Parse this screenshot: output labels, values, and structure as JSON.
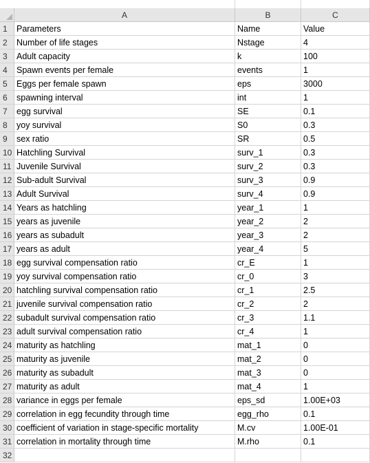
{
  "columns": [
    "A",
    "B",
    "C"
  ],
  "rows": [
    {
      "n": "1",
      "a": "Parameters",
      "b": "Name",
      "c": "Value"
    },
    {
      "n": "2",
      "a": "Number of life stages",
      "b": "Nstage",
      "c": "4"
    },
    {
      "n": "3",
      "a": "Adult capacity",
      "b": "k",
      "c": "100"
    },
    {
      "n": "4",
      "a": "Spawn events per female",
      "b": "events",
      "c": "1"
    },
    {
      "n": "5",
      "a": "Eggs per female spawn",
      "b": "eps",
      "c": "3000"
    },
    {
      "n": "6",
      "a": "spawning interval",
      "b": "int",
      "c": "1"
    },
    {
      "n": "7",
      "a": "egg survival",
      "b": "SE",
      "c": "0.1"
    },
    {
      "n": "8",
      "a": "yoy survival",
      "b": "S0",
      "c": "0.3"
    },
    {
      "n": "9",
      "a": "sex ratio",
      "b": "SR",
      "c": "0.5"
    },
    {
      "n": "10",
      "a": "Hatchling Survival",
      "b": "surv_1",
      "c": "0.3"
    },
    {
      "n": "11",
      "a": "Juvenile Survival",
      "b": "surv_2",
      "c": "0.3"
    },
    {
      "n": "12",
      "a": "Sub-adult Survival",
      "b": "surv_3",
      "c": "0.9"
    },
    {
      "n": "13",
      "a": "Adult Survival",
      "b": "surv_4",
      "c": "0.9"
    },
    {
      "n": "14",
      "a": "Years as hatchling",
      "b": "year_1",
      "c": "1"
    },
    {
      "n": "15",
      "a": "years as juvenile",
      "b": "year_2",
      "c": "2"
    },
    {
      "n": "16",
      "a": "years as subadult",
      "b": "year_3",
      "c": "2"
    },
    {
      "n": "17",
      "a": "years as adult",
      "b": "year_4",
      "c": "5"
    },
    {
      "n": "18",
      "a": "egg survival compensation ratio",
      "b": "cr_E",
      "c": "1"
    },
    {
      "n": "19",
      "a": "yoy survival compensation ratio",
      "b": "cr_0",
      "c": "3"
    },
    {
      "n": "20",
      "a": "hatchling survival compensation ratio",
      "b": "cr_1",
      "c": "2.5"
    },
    {
      "n": "21",
      "a": "juvenile survival compensation ratio",
      "b": "cr_2",
      "c": "2"
    },
    {
      "n": "22",
      "a": "subadult survival compensation ratio",
      "b": "cr_3",
      "c": "1.1"
    },
    {
      "n": "23",
      "a": "adult survival compensation ratio",
      "b": "cr_4",
      "c": "1"
    },
    {
      "n": "24",
      "a": "maturity as hatchling",
      "b": "mat_1",
      "c": "0"
    },
    {
      "n": "25",
      "a": "maturity as juvenile",
      "b": "mat_2",
      "c": "0"
    },
    {
      "n": "26",
      "a": "maturity as subadult",
      "b": "mat_3",
      "c": "0"
    },
    {
      "n": "27",
      "a": "maturity as adult",
      "b": "mat_4",
      "c": "1"
    },
    {
      "n": "28",
      "a": "variance in eggs per female",
      "b": "eps_sd",
      "c": "1.00E+03"
    },
    {
      "n": "29",
      "a": "correlation in egg fecundity through time",
      "b": "egg_rho",
      "c": "0.1"
    },
    {
      "n": "30",
      "a": "coefficient of variation in stage-specific mortality",
      "b": "M.cv",
      "c": "1.00E-01"
    },
    {
      "n": "31",
      "a": "correlation in mortality through time",
      "b": "M.rho",
      "c": "0.1"
    },
    {
      "n": "32",
      "a": "",
      "b": "",
      "c": ""
    }
  ]
}
